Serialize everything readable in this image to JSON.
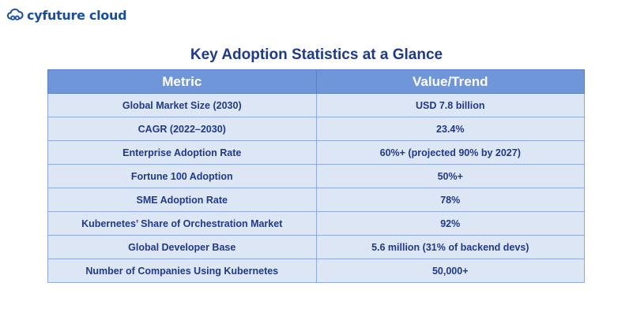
{
  "brand": {
    "name": "cyfuture cloud",
    "icon": "cloud-link-icon",
    "color": "#1a4f9c"
  },
  "title": "Key Adoption Statistics at a Glance",
  "table": {
    "headers": [
      "Metric",
      "Value/Trend"
    ],
    "rows": [
      {
        "metric": "Global Market Size (2030)",
        "value": "USD 7.8 billion"
      },
      {
        "metric": "CAGR (2022–2030)",
        "value": "23.4%"
      },
      {
        "metric": "Enterprise Adoption Rate",
        "value": "60%+ (projected 90% by 2027)"
      },
      {
        "metric": "Fortune 100 Adoption",
        "value": "50%+"
      },
      {
        "metric": "SME Adoption Rate",
        "value": "78%"
      },
      {
        "metric": "Kubernetes’ Share of Orchestration Market",
        "value": "92%"
      },
      {
        "metric": "Global Developer Base",
        "value": "5.6 million (31% of backend devs)"
      },
      {
        "metric": "Number of Companies Using Kubernetes",
        "value": "50,000+"
      }
    ]
  },
  "colors": {
    "header_bg": "#6f96d8",
    "row_bg": "#dde6f5",
    "text": "#1f3a8a"
  }
}
